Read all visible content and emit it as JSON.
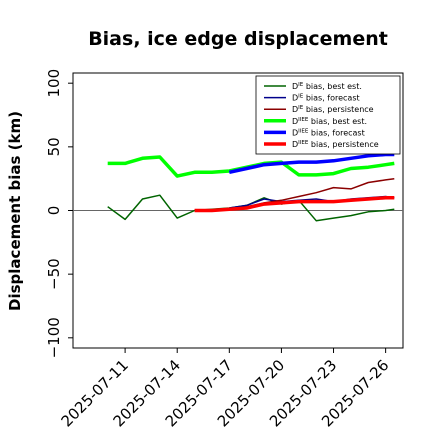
{
  "chart_data": {
    "type": "line",
    "title": "Bias, ice edge displacement",
    "xlabel": "",
    "ylabel": "Displacement bias (km)",
    "ylim": [
      -108,
      108
    ],
    "yticks": [
      100,
      50,
      0,
      -50,
      -100
    ],
    "ytick_labels": [
      "100",
      "50",
      "0",
      "−50",
      "−100"
    ],
    "x_start": "2025-07-08",
    "x_end": "2025-07-27",
    "xticks": [
      "2025-07-11",
      "2025-07-14",
      "2025-07-17",
      "2025-07-20",
      "2025-07-23",
      "2025-07-26"
    ],
    "highlight_tick": "2025-07-17",
    "highlight_color": "#228B22",
    "zero_line": true,
    "legend_position": "upper-right",
    "legend": [
      {
        "sym": "D",
        "sup": "IE",
        "text": "bias, best est.",
        "color": "#006400",
        "width": 1.5
      },
      {
        "sym": "D",
        "sup": "IE",
        "text": "bias, forecast",
        "color": "#00008B",
        "width": 1.5
      },
      {
        "sym": "D",
        "sup": "IE",
        "text": "bias, persistence",
        "color": "#8B0000",
        "width": 1.5
      },
      {
        "sym": "D",
        "sup": "IIEE",
        "text": "bias, best est.",
        "color": "#00FF00",
        "width": 3.5
      },
      {
        "sym": "D",
        "sup": "IIEE",
        "text": "bias, forecast",
        "color": "#0000FF",
        "width": 3.5
      },
      {
        "sym": "D",
        "sup": "IIEE",
        "text": "bias, persistence",
        "color": "#FF0000",
        "width": 3.5
      }
    ],
    "series": [
      {
        "color": "#006400",
        "width": 1.5,
        "points": [
          [
            "2025-07-10",
            3
          ],
          [
            "2025-07-11",
            -7
          ],
          [
            "2025-07-12",
            9
          ],
          [
            "2025-07-13",
            12
          ],
          [
            "2025-07-14",
            -6
          ],
          [
            "2025-07-15",
            0
          ],
          [
            "2025-07-16",
            1
          ],
          [
            "2025-07-17",
            2
          ],
          [
            "2025-07-18",
            4
          ],
          [
            "2025-07-19",
            10
          ],
          [
            "2025-07-20",
            5
          ],
          [
            "2025-07-21",
            8
          ],
          [
            "2025-07-22",
            -8
          ],
          [
            "2025-07-23",
            -6
          ],
          [
            "2025-07-24",
            -4
          ],
          [
            "2025-07-25",
            -1
          ],
          [
            "2025-07-26",
            0
          ],
          [
            "2025-07-26.5",
            1
          ]
        ]
      },
      {
        "color": "#00008B",
        "width": 1.5,
        "points": [
          [
            "2025-07-17",
            2
          ],
          [
            "2025-07-18",
            4
          ],
          [
            "2025-07-19",
            9
          ],
          [
            "2025-07-20",
            7
          ],
          [
            "2025-07-21",
            8
          ],
          [
            "2025-07-22",
            9
          ],
          [
            "2025-07-23",
            7
          ],
          [
            "2025-07-24",
            9
          ],
          [
            "2025-07-25",
            10
          ],
          [
            "2025-07-26",
            11
          ],
          [
            "2025-07-26.5",
            10
          ]
        ]
      },
      {
        "color": "#8B0000",
        "width": 1.5,
        "points": [
          [
            "2025-07-16",
            0
          ],
          [
            "2025-07-17",
            1
          ],
          [
            "2025-07-18",
            3
          ],
          [
            "2025-07-19",
            6
          ],
          [
            "2025-07-20",
            8
          ],
          [
            "2025-07-21",
            11
          ],
          [
            "2025-07-22",
            14
          ],
          [
            "2025-07-23",
            18
          ],
          [
            "2025-07-24",
            17
          ],
          [
            "2025-07-25",
            22
          ],
          [
            "2025-07-26",
            24
          ],
          [
            "2025-07-26.5",
            25
          ]
        ]
      },
      {
        "color": "#00FF00",
        "width": 3.5,
        "points": [
          [
            "2025-07-10",
            37
          ],
          [
            "2025-07-11",
            37
          ],
          [
            "2025-07-12",
            41
          ],
          [
            "2025-07-13",
            42
          ],
          [
            "2025-07-14",
            27
          ],
          [
            "2025-07-15",
            30
          ],
          [
            "2025-07-16",
            30
          ],
          [
            "2025-07-17",
            31
          ],
          [
            "2025-07-18",
            34
          ],
          [
            "2025-07-19",
            37
          ],
          [
            "2025-07-20",
            38
          ],
          [
            "2025-07-21",
            28
          ],
          [
            "2025-07-22",
            28
          ],
          [
            "2025-07-23",
            29
          ],
          [
            "2025-07-24",
            33
          ],
          [
            "2025-07-25",
            34
          ],
          [
            "2025-07-26",
            36
          ],
          [
            "2025-07-26.5",
            37
          ]
        ]
      },
      {
        "color": "#0000FF",
        "width": 3.5,
        "points": [
          [
            "2025-07-17",
            30
          ],
          [
            "2025-07-18",
            33
          ],
          [
            "2025-07-19",
            36
          ],
          [
            "2025-07-20",
            37
          ],
          [
            "2025-07-21",
            38
          ],
          [
            "2025-07-22",
            38
          ],
          [
            "2025-07-23",
            39
          ],
          [
            "2025-07-24",
            41
          ],
          [
            "2025-07-25",
            43
          ],
          [
            "2025-07-26",
            44
          ],
          [
            "2025-07-26.5",
            44
          ]
        ]
      },
      {
        "color": "#FF0000",
        "width": 3.5,
        "points": [
          [
            "2025-07-15",
            0
          ],
          [
            "2025-07-16",
            0
          ],
          [
            "2025-07-17",
            1
          ],
          [
            "2025-07-18",
            2
          ],
          [
            "2025-07-19",
            5
          ],
          [
            "2025-07-20",
            6
          ],
          [
            "2025-07-21",
            7
          ],
          [
            "2025-07-22",
            7
          ],
          [
            "2025-07-23",
            7
          ],
          [
            "2025-07-24",
            8
          ],
          [
            "2025-07-25",
            9
          ],
          [
            "2025-07-26",
            10
          ],
          [
            "2025-07-26.5",
            10
          ]
        ]
      }
    ]
  }
}
